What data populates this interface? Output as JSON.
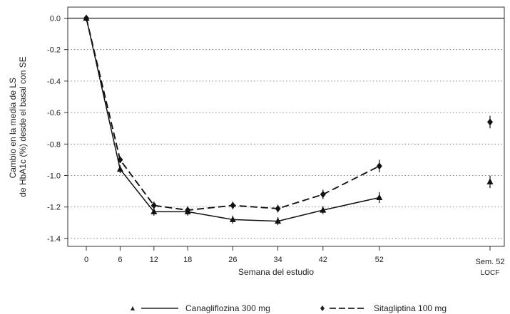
{
  "chart_data": {
    "type": "line",
    "ylabel_lines": [
      "Cambio en la media de LS",
      "de HbA1c (%) desde el basal con SE"
    ],
    "xlabel": "Semana del estudio",
    "x": [
      0,
      6,
      12,
      18,
      26,
      34,
      42,
      52
    ],
    "x_tick_labels": [
      "0",
      "6",
      "12",
      "18",
      "26",
      "34",
      "42",
      "52"
    ],
    "extra_category": {
      "label": "Sem. 52",
      "sublabel": "LOCF"
    },
    "y_ticks": [
      0.0,
      -0.2,
      -0.4,
      -0.6,
      -0.8,
      -1.0,
      -1.2,
      -1.4
    ],
    "y_tick_labels": [
      "0.0",
      "-0.2",
      "-0.4",
      "-0.6",
      "-0.8",
      "-1.0",
      "-1.2",
      "-1.4"
    ],
    "ylim": [
      -1.45,
      0.07
    ],
    "grid": true,
    "legend_position": "bottom",
    "series": [
      {
        "name": "Canagliflozina 300 mg",
        "marker": "triangle",
        "line": "solid",
        "values": [
          0.0,
          -0.96,
          -1.23,
          -1.23,
          -1.28,
          -1.29,
          -1.22,
          -1.14
        ],
        "se": [
          0.0,
          0.025,
          0.025,
          0.025,
          0.025,
          0.025,
          0.025,
          0.035
        ],
        "locf": -1.04,
        "locf_se": 0.04
      },
      {
        "name": "Sitagliptina 100 mg",
        "marker": "diamond",
        "line": "dashed",
        "values": [
          0.0,
          -0.9,
          -1.19,
          -1.22,
          -1.19,
          -1.21,
          -1.12,
          -0.94
        ],
        "se": [
          0.0,
          0.02,
          0.025,
          0.025,
          0.025,
          0.025,
          0.03,
          0.04
        ],
        "locf": -0.66,
        "locf_se": 0.04
      }
    ]
  }
}
